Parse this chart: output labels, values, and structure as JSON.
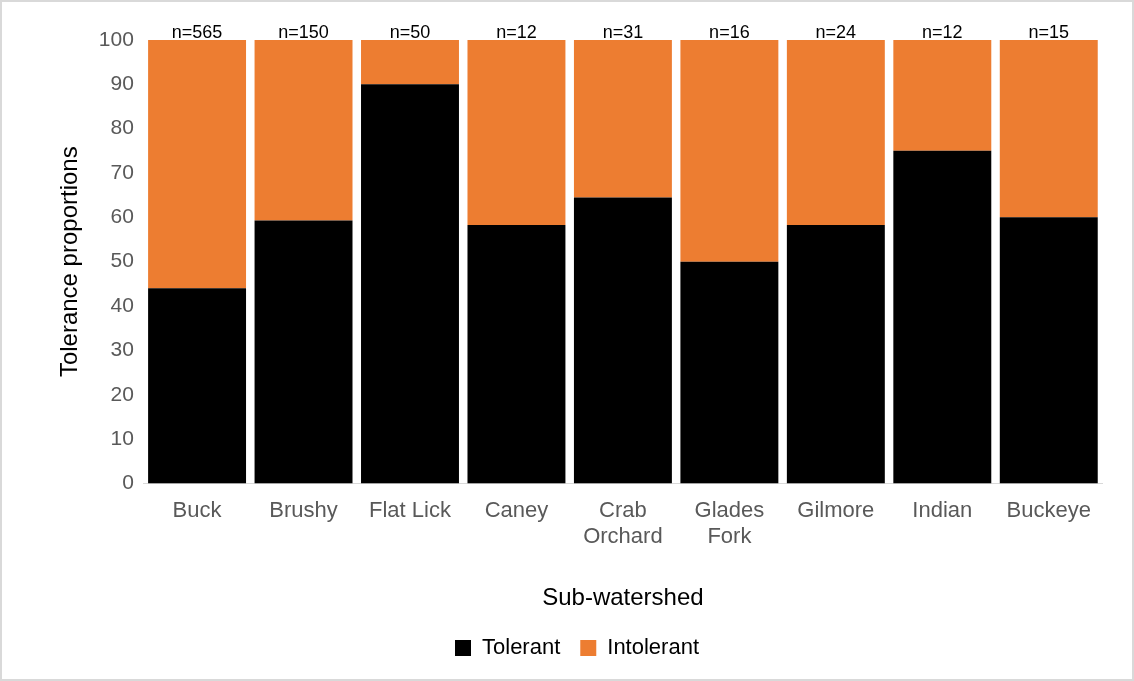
{
  "chart_data": {
    "type": "bar",
    "stacked": true,
    "xlabel": "Sub-watershed",
    "ylabel": "Tolerance proportions",
    "categories": [
      "Buck",
      "Brushy",
      "Flat Lick",
      "Caney",
      "Crab Orchard",
      "Glades Fork",
      "Gilmore",
      "Indian",
      "Buckeye"
    ],
    "series": [
      {
        "name": "Tolerant",
        "color": "#000000",
        "values": [
          44,
          59.3,
          90,
          58.3,
          64.5,
          50,
          58.3,
          75,
          60
        ]
      },
      {
        "name": "Intolerant",
        "color": "#ed7d31",
        "values": [
          56,
          40.7,
          10,
          41.7,
          35.5,
          50,
          41.7,
          25,
          40
        ]
      }
    ],
    "ylim": [
      0,
      100
    ],
    "yticks": [
      0,
      10,
      20,
      30,
      40,
      50,
      60,
      70,
      80,
      90,
      100
    ],
    "grid": false,
    "legend": "bottom",
    "annotations": [
      {
        "text": "n=565",
        "x": "Buck",
        "y": 100
      },
      {
        "text": "n=150",
        "x": "Brushy",
        "y": 100
      },
      {
        "text": "n=50",
        "x": "Flat Lick",
        "y": 100
      },
      {
        "text": "n=12",
        "x": "Caney",
        "y": 100
      },
      {
        "text": "n=31",
        "x": "Crab Orchard",
        "y": 100
      },
      {
        "text": "n=16",
        "x": "Glades Fork",
        "y": 100
      },
      {
        "text": "n=24",
        "x": "Gilmore",
        "y": 100
      },
      {
        "text": "n=12",
        "x": "Indian",
        "y": 100
      },
      {
        "text": "n=15",
        "x": "Buckeye",
        "y": 100
      }
    ]
  }
}
